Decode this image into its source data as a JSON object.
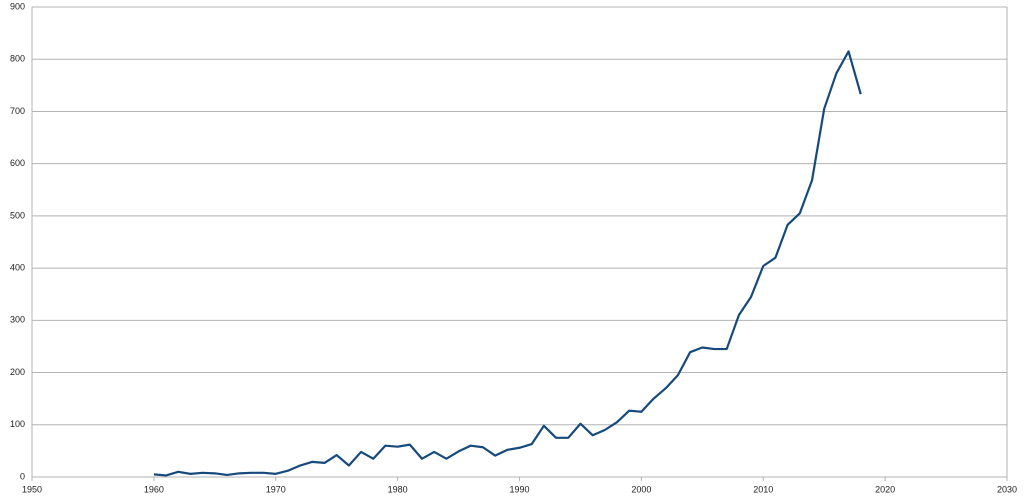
{
  "chart_data": {
    "type": "line",
    "x": [
      1960,
      1961,
      1962,
      1963,
      1964,
      1965,
      1966,
      1967,
      1968,
      1969,
      1970,
      1971,
      1972,
      1973,
      1974,
      1975,
      1976,
      1977,
      1978,
      1979,
      1980,
      1981,
      1982,
      1983,
      1984,
      1985,
      1986,
      1987,
      1988,
      1989,
      1990,
      1991,
      1992,
      1993,
      1994,
      1995,
      1996,
      1997,
      1998,
      1999,
      2000,
      2001,
      2002,
      2003,
      2004,
      2005,
      2006,
      2007,
      2008,
      2009,
      2010,
      2011,
      2012,
      2013,
      2014,
      2015,
      2016,
      2017,
      2018
    ],
    "values": [
      5,
      3,
      10,
      6,
      8,
      7,
      4,
      7,
      8,
      8,
      6,
      12,
      22,
      29,
      27,
      42,
      22,
      48,
      35,
      60,
      58,
      62,
      35,
      48,
      35,
      49,
      60,
      57,
      41,
      52,
      56,
      63,
      98,
      75,
      75,
      102,
      80,
      90,
      105,
      127,
      125,
      150,
      170,
      195,
      239,
      248,
      245,
      245,
      310,
      345,
      404,
      420,
      483,
      505,
      568,
      705,
      773,
      815,
      733
    ],
    "color": "#174a7c",
    "xlim": [
      1950,
      2030
    ],
    "xticks": [
      1950,
      1960,
      1970,
      1980,
      1990,
      2000,
      2010,
      2020,
      2030
    ],
    "ylim": [
      0,
      900
    ],
    "yticks": [
      0,
      100,
      200,
      300,
      400,
      500,
      600,
      700,
      800,
      900
    ],
    "grid": true
  }
}
